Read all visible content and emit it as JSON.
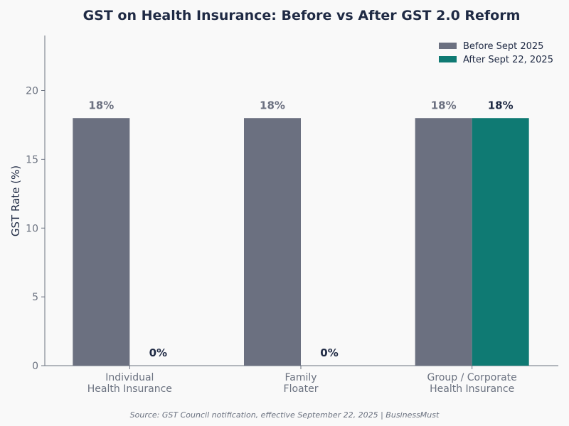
{
  "chart_data": {
    "type": "bar",
    "title": "GST on Health Insurance: Before vs After GST 2.0 Reform",
    "xlabel": "",
    "ylabel": "GST Rate (%)",
    "ylim": [
      0,
      24
    ],
    "yticks": [
      0,
      5,
      10,
      15,
      20
    ],
    "grid": false,
    "legend_position": "top-right",
    "categories": [
      [
        "Individual",
        "Health Insurance"
      ],
      [
        "Family",
        "Floater"
      ],
      [
        "Group / Corporate",
        "Health Insurance"
      ]
    ],
    "series": [
      {
        "name": "Before Sept 2025",
        "color": "#6b7080",
        "values": [
          18,
          18,
          18
        ],
        "labels": [
          "18%",
          "18%",
          "18%"
        ],
        "label_color": "#6b7080"
      },
      {
        "name": "After Sept 22, 2025",
        "color": "#0f7a73",
        "values": [
          0,
          0,
          18
        ],
        "labels": [
          "0%",
          "0%",
          "18%"
        ],
        "label_color": "#1f2a44"
      }
    ]
  },
  "source": "Source: GST Council notification, effective September 22, 2025 | BusinessMust"
}
